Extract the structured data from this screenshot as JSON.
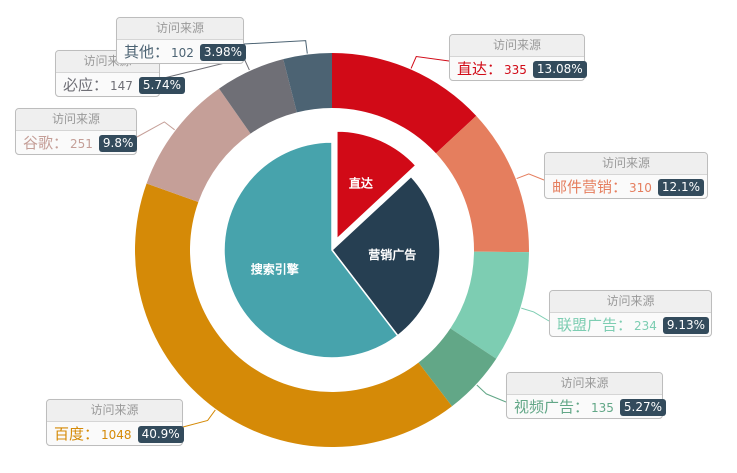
{
  "chart_data": {
    "type": "pie",
    "inner_series": {
      "slices": [
        {
          "name": "直达",
          "value": 335,
          "color": "#d10a17"
        },
        {
          "name": "营销广告",
          "value": 679,
          "color": "#263f52"
        },
        {
          "name": "搜索引擎",
          "value": 1548,
          "color": "#47a3ac"
        }
      ]
    },
    "outer_series": {
      "tooltip_title": "访问来源",
      "slices": [
        {
          "name": "直达",
          "value": 335,
          "percent": "13.08%",
          "color": "#d10a17"
        },
        {
          "name": "邮件营销",
          "value": 310,
          "percent": "12.1%",
          "color": "#e57e5e"
        },
        {
          "name": "联盟广告",
          "value": 234,
          "percent": "9.13%",
          "color": "#7dcdb2"
        },
        {
          "name": "视频广告",
          "value": 135,
          "percent": "5.27%",
          "color": "#62a787"
        },
        {
          "name": "百度",
          "value": 1048,
          "percent": "40.9%",
          "color": "#d58a07"
        },
        {
          "name": "谷歌",
          "value": 251,
          "percent": "9.8%",
          "color": "#c59f98"
        },
        {
          "name": "必应",
          "value": 147,
          "percent": "5.74%",
          "color": "#6f6f76"
        },
        {
          "name": "其他",
          "value": 102,
          "percent": "3.98%",
          "color": "#4c6373"
        }
      ]
    }
  }
}
